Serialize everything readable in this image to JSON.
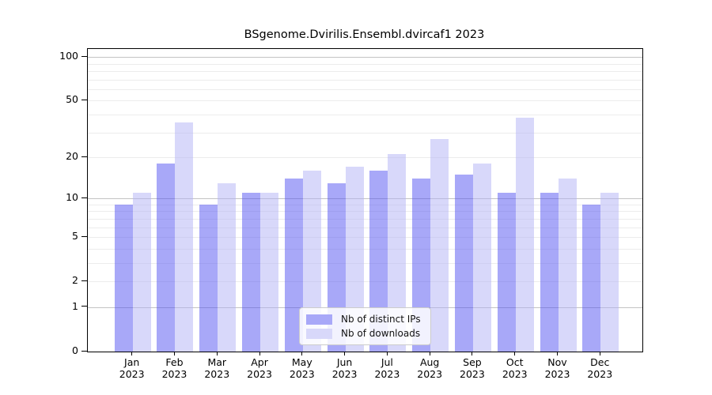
{
  "chart_data": {
    "type": "bar",
    "title": "BSgenome.Dvirilis.Ensembl.dvircaf1 2023",
    "categories": [
      "Jan",
      "Feb",
      "Mar",
      "Apr",
      "May",
      "Jun",
      "Jul",
      "Aug",
      "Sep",
      "Oct",
      "Nov",
      "Dec"
    ],
    "year_label": "2023",
    "series": [
      {
        "key": "distinct-ips",
        "name": "Nb of distinct IPs",
        "color": "#a8a8f8",
        "values": [
          9,
          18,
          9,
          11,
          14,
          13,
          16,
          14,
          15,
          11,
          11,
          9
        ]
      },
      {
        "key": "downloads",
        "name": "Nb of downloads",
        "color": "#d8d8fa",
        "values": [
          11,
          35,
          13,
          11,
          16,
          17,
          21,
          27,
          18,
          38,
          14,
          11
        ]
      }
    ],
    "yscale": "log1p",
    "ylim": [
      0,
      113.5
    ],
    "yticks": [
      0,
      1,
      2,
      5,
      10,
      20,
      50,
      100
    ],
    "major_gridlines": [
      1,
      10,
      100
    ],
    "minor_gridlines": [
      2,
      3,
      4,
      5,
      6,
      7,
      8,
      9,
      20,
      30,
      40,
      50,
      60,
      70,
      80,
      90
    ],
    "grid": true,
    "legend_position": "lower center",
    "colors": {
      "axis": "#000000",
      "major_grid": "#c3c3c3",
      "minor_grid": "#ececec",
      "text": "#111111",
      "legend_border": "#cccccc",
      "background": "#ffffff"
    }
  }
}
